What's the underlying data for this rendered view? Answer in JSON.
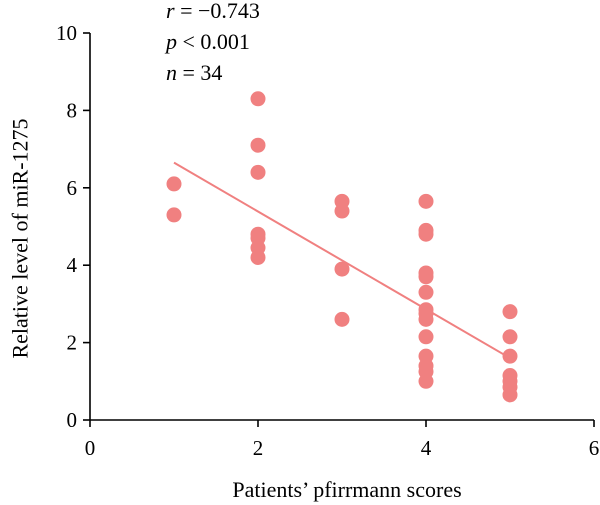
{
  "chart_data": {
    "type": "scatter",
    "xlabel": "Patients’ pfirrmann scores",
    "ylabel": "Relative level of miR-1275",
    "xlim": [
      0,
      6
    ],
    "ylim": [
      0,
      10
    ],
    "xticks": [
      0,
      2,
      4,
      6
    ],
    "yticks": [
      0,
      2,
      4,
      6,
      8,
      10
    ],
    "grid": false,
    "colors": {
      "points": "#f08080",
      "trendline": "#f08080",
      "axis": "#000000"
    },
    "annotations": [
      {
        "var": "r",
        "op": " = ",
        "value": "−0.743"
      },
      {
        "var": "p",
        "op": " < ",
        "value": "0.001"
      },
      {
        "var": "n",
        "op": " = ",
        "value": "34"
      }
    ],
    "points": [
      {
        "x": 1,
        "y": 6.1
      },
      {
        "x": 1,
        "y": 5.3
      },
      {
        "x": 2,
        "y": 8.3
      },
      {
        "x": 2,
        "y": 7.1
      },
      {
        "x": 2,
        "y": 6.4
      },
      {
        "x": 2,
        "y": 4.8
      },
      {
        "x": 2,
        "y": 4.7
      },
      {
        "x": 2,
        "y": 4.45
      },
      {
        "x": 2,
        "y": 4.2
      },
      {
        "x": 3,
        "y": 5.65
      },
      {
        "x": 3,
        "y": 5.4
      },
      {
        "x": 3,
        "y": 3.9
      },
      {
        "x": 3,
        "y": 2.6
      },
      {
        "x": 4,
        "y": 5.65
      },
      {
        "x": 4,
        "y": 4.9
      },
      {
        "x": 4,
        "y": 4.8
      },
      {
        "x": 4,
        "y": 3.8
      },
      {
        "x": 4,
        "y": 3.7
      },
      {
        "x": 4,
        "y": 3.3
      },
      {
        "x": 4,
        "y": 2.85
      },
      {
        "x": 4,
        "y": 2.75
      },
      {
        "x": 4,
        "y": 2.6
      },
      {
        "x": 4,
        "y": 2.15
      },
      {
        "x": 4,
        "y": 1.65
      },
      {
        "x": 4,
        "y": 1.4
      },
      {
        "x": 4,
        "y": 1.25
      },
      {
        "x": 4,
        "y": 1.0
      },
      {
        "x": 5,
        "y": 2.8
      },
      {
        "x": 5,
        "y": 2.15
      },
      {
        "x": 5,
        "y": 1.65
      },
      {
        "x": 5,
        "y": 1.15
      },
      {
        "x": 5,
        "y": 1.0
      },
      {
        "x": 5,
        "y": 0.85
      },
      {
        "x": 5,
        "y": 0.65
      }
    ],
    "trendline": {
      "x_start": 1,
      "y_start": 6.65,
      "x_end": 5,
      "y_end": 1.6
    }
  }
}
